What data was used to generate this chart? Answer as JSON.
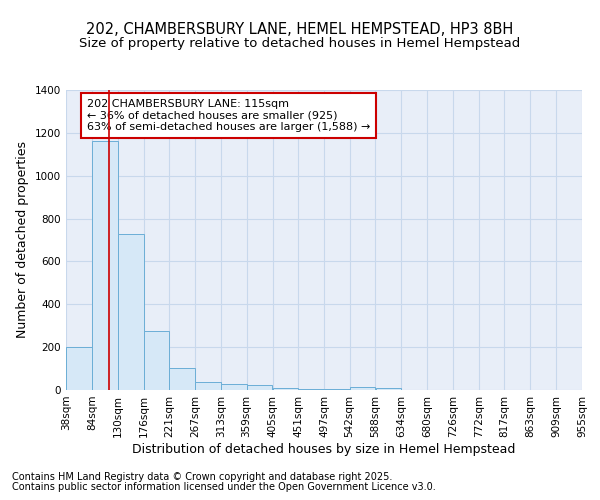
{
  "title1": "202, CHAMBERSBURY LANE, HEMEL HEMPSTEAD, HP3 8BH",
  "title2": "Size of property relative to detached houses in Hemel Hempstead",
  "xlabel": "Distribution of detached houses by size in Hemel Hempstead",
  "ylabel": "Number of detached properties",
  "bar_left_edges": [
    38,
    84,
    130,
    176,
    221,
    267,
    313,
    359,
    405,
    451,
    497,
    542,
    588,
    634,
    680,
    726,
    772,
    817,
    863,
    909
  ],
  "bar_heights": [
    200,
    1160,
    730,
    275,
    105,
    38,
    28,
    25,
    8,
    5,
    5,
    12,
    10,
    2,
    1,
    1,
    1,
    0,
    0,
    0
  ],
  "bin_width": 46,
  "bar_facecolor": "#d6e8f7",
  "bar_edgecolor": "#6baed6",
  "grid_color": "#c8d8ec",
  "bg_color": "#e8eef8",
  "property_size": 115,
  "red_line_color": "#cc0000",
  "annotation_line1": "202 CHAMBERSBURY LANE: 115sqm",
  "annotation_line2": "← 36% of detached houses are smaller (925)",
  "annotation_line3": "63% of semi-detached houses are larger (1,588) →",
  "annotation_box_color": "#cc0000",
  "ylim": [
    0,
    1400
  ],
  "yticks": [
    0,
    200,
    400,
    600,
    800,
    1000,
    1200,
    1400
  ],
  "tick_labels": [
    "38sqm",
    "84sqm",
    "130sqm",
    "176sqm",
    "221sqm",
    "267sqm",
    "313sqm",
    "359sqm",
    "405sqm",
    "451sqm",
    "497sqm",
    "542sqm",
    "588sqm",
    "634sqm",
    "680sqm",
    "726sqm",
    "772sqm",
    "817sqm",
    "863sqm",
    "909sqm",
    "955sqm"
  ],
  "footer1": "Contains HM Land Registry data © Crown copyright and database right 2025.",
  "footer2": "Contains public sector information licensed under the Open Government Licence v3.0.",
  "title_fontsize": 10.5,
  "subtitle_fontsize": 9.5,
  "axis_label_fontsize": 9,
  "tick_fontsize": 7.5,
  "annotation_fontsize": 8,
  "footer_fontsize": 7
}
